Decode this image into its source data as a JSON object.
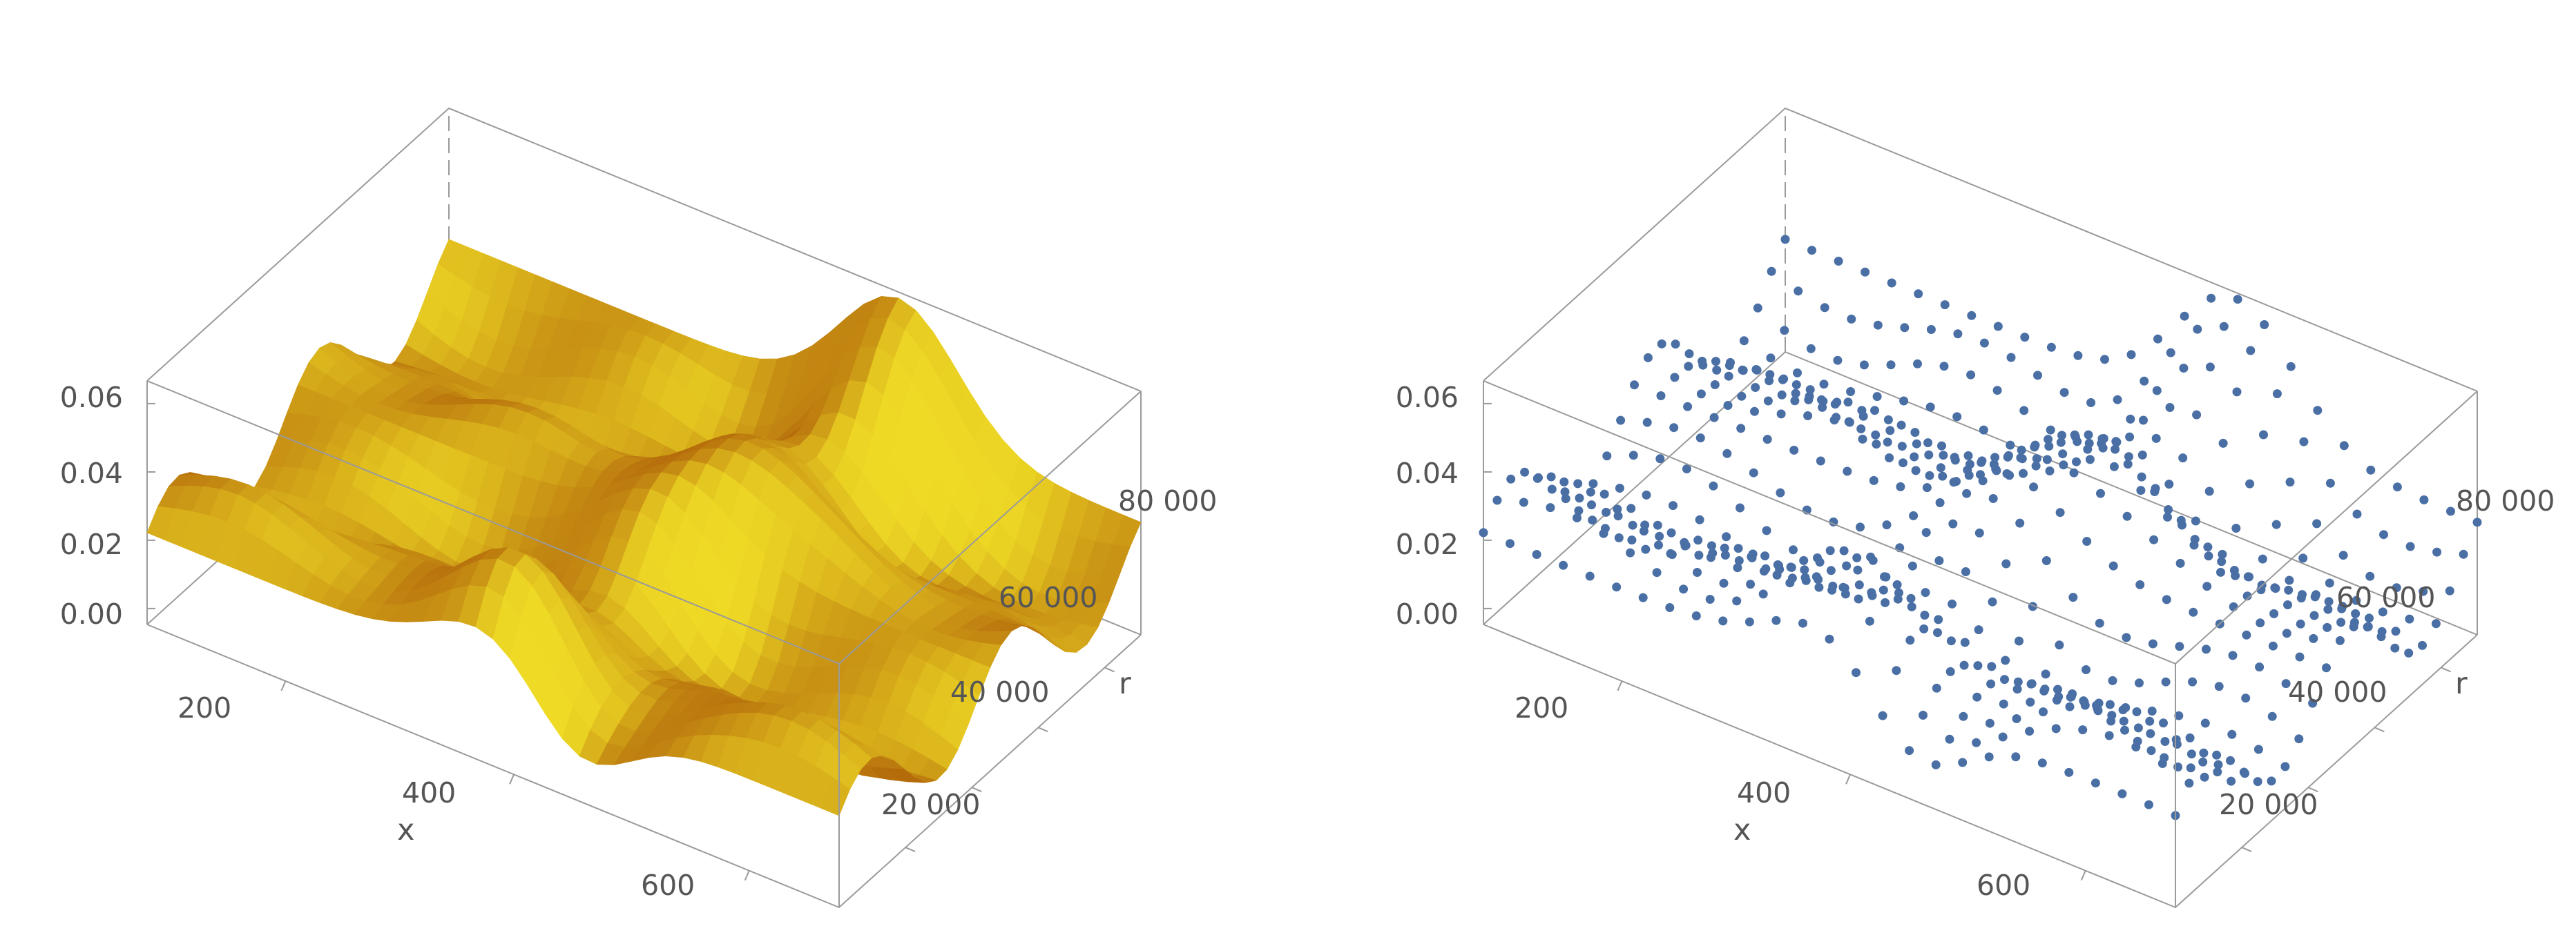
{
  "chart_data": [
    {
      "type": "surface3d",
      "description_style": "smooth orange surface",
      "xlabel": "x",
      "ylabel": "r",
      "zlabel": "",
      "xlim": [
        100,
        700
      ],
      "ylim": [
        0,
        90000
      ],
      "zlim": [
        -0.005,
        0.065
      ],
      "x_ticks": [
        "200",
        "400",
        "600"
      ],
      "y_ticks": [
        "20 000",
        "40 000",
        "60 000",
        "80 000"
      ],
      "z_ticks": [
        "0.00",
        "0.02",
        "0.04",
        "0.06"
      ],
      "color": "#F5A623",
      "grid": false
    },
    {
      "type": "scatter3d",
      "xlabel": "x",
      "ylabel": "r",
      "zlabel": "",
      "xlim": [
        100,
        700
      ],
      "ylim": [
        0,
        90000
      ],
      "zlim": [
        -0.005,
        0.065
      ],
      "x_ticks": [
        "200",
        "400",
        "600"
      ],
      "y_ticks": [
        "20 000",
        "40 000",
        "60 000",
        "80 000"
      ],
      "z_ticks": [
        "0.00",
        "0.02",
        "0.04",
        "0.06"
      ],
      "color": "#4A6FA5",
      "grid": false
    }
  ]
}
